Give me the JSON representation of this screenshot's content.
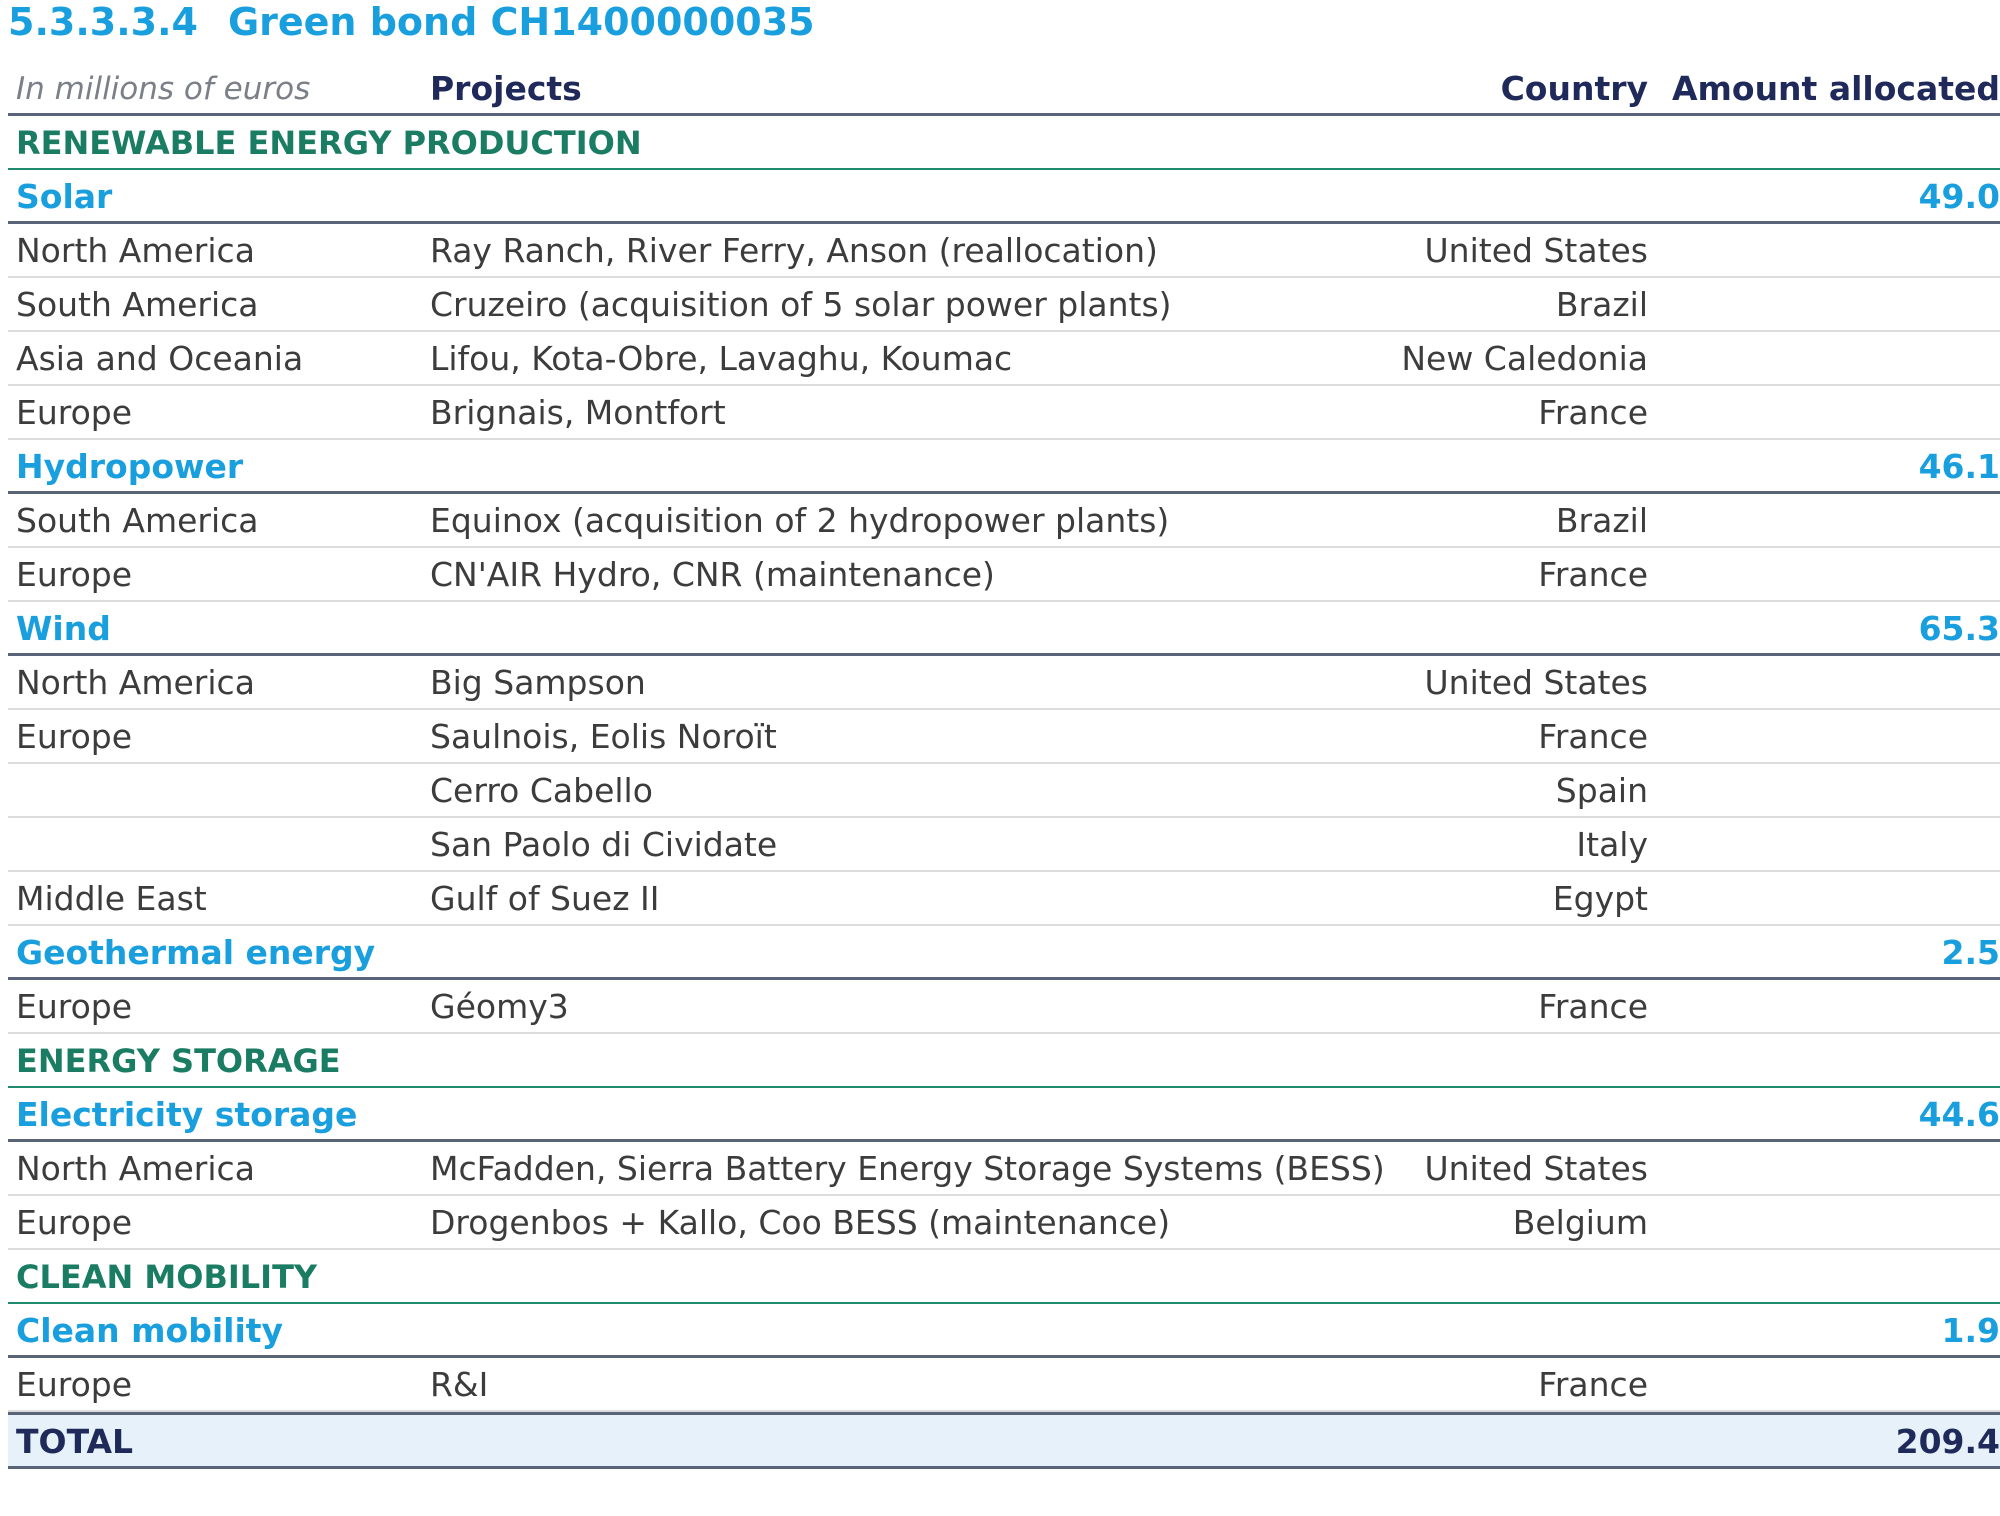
{
  "section": {
    "number": "5.3.3.3.4",
    "title": "Green bond CH1400000035"
  },
  "header": {
    "units": "In millions of euros",
    "projects": "Projects",
    "country": "Country",
    "amount": "Amount allocated"
  },
  "categories": {
    "renewable": "RENEWABLE ENERGY PRODUCTION",
    "storage": "ENERGY STORAGE",
    "mobility": "CLEAN MOBILITY"
  },
  "solar": {
    "label": "Solar",
    "amount": "49.0",
    "rows": [
      {
        "region": "North America",
        "project": "Ray Ranch, River Ferry, Anson (reallocation)",
        "country": "United States"
      },
      {
        "region": "South America",
        "project": "Cruzeiro (acquisition of 5 solar power plants)",
        "country": "Brazil"
      },
      {
        "region": "Asia and Oceania",
        "project": "Lifou, Kota-Obre, Lavaghu, Koumac",
        "country": "New Caledonia"
      },
      {
        "region": "Europe",
        "project": "Brignais, Montfort",
        "country": "France"
      }
    ]
  },
  "hydro": {
    "label": "Hydropower",
    "amount": "46.1",
    "rows": [
      {
        "region": "South America",
        "project": "Equinox (acquisition of 2 hydropower plants)",
        "country": "Brazil"
      },
      {
        "region": "Europe",
        "project": "CN'AIR Hydro, CNR (maintenance)",
        "country": "France"
      }
    ]
  },
  "wind": {
    "label": "Wind",
    "amount": "65.3",
    "rows": [
      {
        "region": "North America",
        "project": "Big Sampson",
        "country": "United States"
      },
      {
        "region": "Europe",
        "project": "Saulnois, Eolis Noroït",
        "country": "France"
      },
      {
        "region": "",
        "project": "Cerro Cabello",
        "country": "Spain"
      },
      {
        "region": "",
        "project": "San Paolo di Cividate",
        "country": "Italy"
      },
      {
        "region": "Middle East",
        "project": "Gulf of Suez II",
        "country": "Egypt"
      }
    ]
  },
  "geo": {
    "label": "Geothermal energy",
    "amount": "2.5",
    "rows": [
      {
        "region": "Europe",
        "project": "Géomy3",
        "country": "France"
      }
    ]
  },
  "elec": {
    "label": "Electricity storage",
    "amount": "44.6",
    "rows": [
      {
        "region": "North America",
        "project": "McFadden, Sierra Battery Energy Storage Systems (BESS)",
        "country": "United States"
      },
      {
        "region": "Europe",
        "project": "Drogenbos + Kallo, Coo BESS (maintenance)",
        "country": "Belgium"
      }
    ]
  },
  "mobility": {
    "label": "Clean mobility",
    "amount": "1.9",
    "rows": [
      {
        "region": "Europe",
        "project": "R&I",
        "country": "France"
      }
    ]
  },
  "total": {
    "label": "TOTAL",
    "amount": "209.4"
  }
}
